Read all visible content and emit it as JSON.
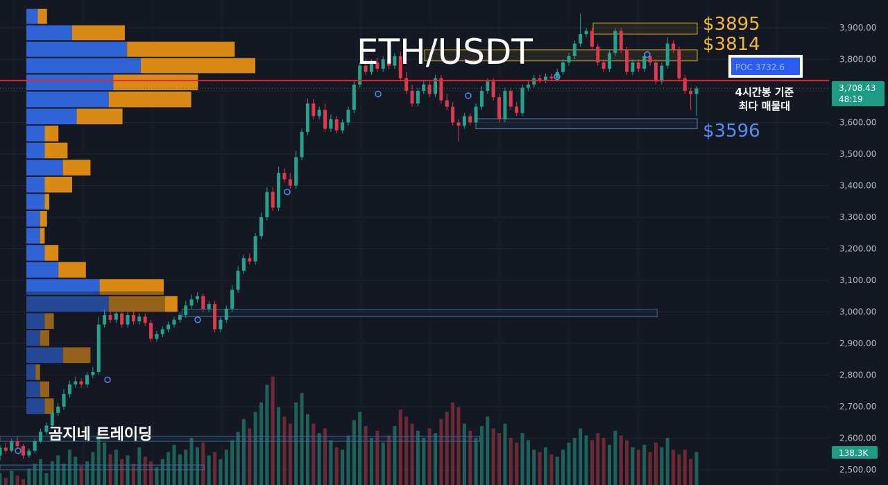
{
  "chart_data": {
    "type": "candlestick",
    "title": "ETH/USDT",
    "watermark": "곰지네 트레이딩",
    "ylim": [
      2460,
      3960
    ],
    "y_ticks": [
      "3,900.00",
      "3,800.00",
      "3,700.00",
      "3,600.00",
      "3,500.00",
      "3,400.00",
      "3,300.00",
      "3,200.00",
      "3,100.00",
      "3,000.00",
      "2,900.00",
      "2,800.00",
      "2,700.00",
      "2,600.00",
      "2,500.00"
    ],
    "y_tick_values": [
      3900,
      3800,
      3700,
      3600,
      3500,
      3400,
      3300,
      3200,
      3100,
      3000,
      2900,
      2800,
      2700,
      2600,
      2500
    ],
    "current_price": {
      "value": 3708.43,
      "label": "3,708.43",
      "countdown": "48:19"
    },
    "volume_badge": "138.3K",
    "poc": {
      "value": 3732.6,
      "label": "POC  3732.6",
      "note_line1": "4시간봉 기준",
      "note_line2": "최다 매물대"
    },
    "levels": [
      {
        "value": 3895,
        "label": "$3895",
        "zone": [
          3880,
          3915
        ]
      },
      {
        "value": 3814,
        "label": "$3814",
        "zone": [
          3795,
          3830
        ]
      },
      {
        "value": 3596,
        "label": "$3596",
        "zone": [
          3580,
          3612
        ]
      }
    ],
    "other_zones": [
      {
        "lo": 2985,
        "hi": 3008,
        "start": 0.205,
        "end": 0.74
      },
      {
        "lo": 2590,
        "hi": 2606,
        "start": 0.0,
        "end": 0.54
      },
      {
        "lo": 2500,
        "hi": 2515,
        "start": 0.0,
        "end": 0.23
      }
    ],
    "volume_profile": [
      {
        "lo": 3910,
        "hi": 3962,
        "buy": 0.05,
        "sell": 0.04
      },
      {
        "lo": 3858,
        "hi": 3910,
        "buy": 0.2,
        "sell": 0.23
      },
      {
        "lo": 3806,
        "hi": 3858,
        "buy": 0.44,
        "sell": 0.47
      },
      {
        "lo": 3754,
        "hi": 3806,
        "buy": 0.5,
        "sell": 0.5
      },
      {
        "lo": 3700,
        "hi": 3754,
        "buy": 0.38,
        "sell": 0.37
      },
      {
        "lo": 3646,
        "hi": 3700,
        "buy": 0.36,
        "sell": 0.36
      },
      {
        "lo": 3592,
        "hi": 3646,
        "buy": 0.22,
        "sell": 0.2
      },
      {
        "lo": 3538,
        "hi": 3592,
        "buy": 0.08,
        "sell": 0.06
      },
      {
        "lo": 3484,
        "hi": 3538,
        "buy": 0.08,
        "sell": 0.1
      },
      {
        "lo": 3430,
        "hi": 3484,
        "buy": 0.16,
        "sell": 0.12
      },
      {
        "lo": 3376,
        "hi": 3430,
        "buy": 0.08,
        "sell": 0.12
      },
      {
        "lo": 3322,
        "hi": 3376,
        "buy": 0.08,
        "sell": 0.02
      },
      {
        "lo": 3268,
        "hi": 3322,
        "buy": 0.06,
        "sell": 0.03
      },
      {
        "lo": 3214,
        "hi": 3268,
        "buy": 0.06,
        "sell": 0.02
      },
      {
        "lo": 3160,
        "hi": 3214,
        "buy": 0.08,
        "sell": 0.06
      },
      {
        "lo": 3106,
        "hi": 3160,
        "buy": 0.14,
        "sell": 0.12
      },
      {
        "lo": 3052,
        "hi": 3106,
        "buy": 0.32,
        "sell": 0.28
      },
      {
        "lo": 2998,
        "hi": 3052,
        "buy": 0.36,
        "sell": 0.3
      },
      {
        "lo": 2944,
        "hi": 2998,
        "buy": 0.08,
        "sell": 0.04
      },
      {
        "lo": 2890,
        "hi": 2944,
        "buy": 0.06,
        "sell": 0.04
      },
      {
        "lo": 2836,
        "hi": 2890,
        "buy": 0.16,
        "sell": 0.12
      },
      {
        "lo": 2782,
        "hi": 2836,
        "buy": 0.04,
        "sell": 0.02
      },
      {
        "lo": 2728,
        "hi": 2782,
        "buy": 0.06,
        "sell": 0.04
      },
      {
        "lo": 2674,
        "hi": 2728,
        "buy": 0.08,
        "sell": 0.04
      }
    ],
    "candles": [
      [
        2545,
        2570,
        2530,
        2578
      ],
      [
        2570,
        2560,
        2552,
        2585
      ],
      [
        2560,
        2590,
        2555,
        2598
      ],
      [
        2590,
        2575,
        2568,
        2605
      ],
      [
        2575,
        2545,
        2535,
        2582
      ],
      [
        2545,
        2560,
        2538,
        2568
      ],
      [
        2560,
        2590,
        2552,
        2598
      ],
      [
        2590,
        2620,
        2585,
        2630
      ],
      [
        2620,
        2640,
        2610,
        2650
      ],
      [
        2640,
        2680,
        2632,
        2690
      ],
      [
        2680,
        2700,
        2670,
        2712
      ],
      [
        2700,
        2740,
        2690,
        2755
      ],
      [
        2740,
        2770,
        2728,
        2782
      ],
      [
        2770,
        2780,
        2760,
        2795
      ],
      [
        2780,
        2770,
        2760,
        2790
      ],
      [
        2770,
        2800,
        2760,
        2810
      ],
      [
        2800,
        2810,
        2790,
        2825
      ],
      [
        2810,
        2960,
        2800,
        2985
      ],
      [
        2960,
        2990,
        2950,
        3010
      ],
      [
        2990,
        2975,
        2965,
        3010
      ],
      [
        2975,
        2995,
        2965,
        3005
      ],
      [
        2995,
        2960,
        2950,
        3005
      ],
      [
        2960,
        2990,
        2950,
        3000
      ],
      [
        2990,
        2970,
        2960,
        3000
      ],
      [
        2970,
        2985,
        2960,
        2995
      ],
      [
        2985,
        2965,
        2955,
        2995
      ],
      [
        2965,
        2915,
        2905,
        2975
      ],
      [
        2915,
        2930,
        2905,
        2940
      ],
      [
        2930,
        2945,
        2920,
        2955
      ],
      [
        2945,
        2960,
        2935,
        2970
      ],
      [
        2960,
        2975,
        2950,
        2985
      ],
      [
        2975,
        2990,
        2965,
        3000
      ],
      [
        2990,
        3020,
        2980,
        3035
      ],
      [
        3020,
        3040,
        3010,
        3055
      ],
      [
        3040,
        3050,
        3030,
        3062
      ],
      [
        3050,
        3010,
        3000,
        3058
      ],
      [
        3010,
        3025,
        3000,
        3035
      ],
      [
        3025,
        2945,
        2935,
        3035
      ],
      [
        2945,
        2975,
        2935,
        2985
      ],
      [
        2975,
        3010,
        2965,
        3020
      ],
      [
        3010,
        3070,
        3000,
        3085
      ],
      [
        3070,
        3130,
        3060,
        3145
      ],
      [
        3130,
        3170,
        3120,
        3180
      ],
      [
        3170,
        3160,
        3150,
        3185
      ],
      [
        3160,
        3240,
        3150,
        3250
      ],
      [
        3240,
        3300,
        3230,
        3315
      ],
      [
        3300,
        3380,
        3290,
        3395
      ],
      [
        3380,
        3330,
        3320,
        3395
      ],
      [
        3330,
        3440,
        3320,
        3460
      ],
      [
        3440,
        3420,
        3410,
        3455
      ],
      [
        3420,
        3400,
        3390,
        3440
      ],
      [
        3400,
        3490,
        3390,
        3510
      ],
      [
        3490,
        3570,
        3480,
        3580
      ],
      [
        3570,
        3660,
        3560,
        3675
      ],
      [
        3660,
        3620,
        3610,
        3675
      ],
      [
        3620,
        3640,
        3610,
        3650
      ],
      [
        3640,
        3580,
        3570,
        3660
      ],
      [
        3580,
        3610,
        3570,
        3625
      ],
      [
        3610,
        3575,
        3565,
        3620
      ],
      [
        3575,
        3600,
        3565,
        3610
      ],
      [
        3600,
        3640,
        3590,
        3650
      ],
      [
        3640,
        3720,
        3630,
        3735
      ],
      [
        3720,
        3780,
        3710,
        3790
      ],
      [
        3780,
        3760,
        3750,
        3800
      ],
      [
        3760,
        3790,
        3750,
        3800
      ],
      [
        3790,
        3770,
        3760,
        3805
      ],
      [
        3770,
        3800,
        3760,
        3810
      ],
      [
        3800,
        3780,
        3770,
        3810
      ],
      [
        3780,
        3810,
        3770,
        3820
      ],
      [
        3810,
        3740,
        3730,
        3825
      ],
      [
        3740,
        3700,
        3690,
        3760
      ],
      [
        3700,
        3660,
        3650,
        3720
      ],
      [
        3660,
        3700,
        3650,
        3710
      ],
      [
        3700,
        3720,
        3690,
        3735
      ],
      [
        3720,
        3690,
        3680,
        3730
      ],
      [
        3690,
        3740,
        3680,
        3750
      ],
      [
        3740,
        3670,
        3660,
        3750
      ],
      [
        3670,
        3650,
        3640,
        3690
      ],
      [
        3650,
        3600,
        3590,
        3665
      ],
      [
        3600,
        3590,
        3540,
        3610
      ],
      [
        3590,
        3620,
        3580,
        3630
      ],
      [
        3620,
        3600,
        3590,
        3630
      ],
      [
        3600,
        3650,
        3590,
        3660
      ],
      [
        3650,
        3700,
        3640,
        3715
      ],
      [
        3700,
        3730,
        3690,
        3740
      ],
      [
        3730,
        3680,
        3670,
        3740
      ],
      [
        3680,
        3610,
        3600,
        3690
      ],
      [
        3610,
        3700,
        3600,
        3710
      ],
      [
        3700,
        3650,
        3640,
        3710
      ],
      [
        3650,
        3630,
        3620,
        3665
      ],
      [
        3630,
        3710,
        3620,
        3720
      ],
      [
        3710,
        3720,
        3700,
        3735
      ],
      [
        3720,
        3740,
        3710,
        3750
      ],
      [
        3740,
        3735,
        3725,
        3752
      ],
      [
        3735,
        3745,
        3725,
        3755
      ],
      [
        3745,
        3740,
        3730,
        3755
      ],
      [
        3740,
        3760,
        3730,
        3770
      ],
      [
        3760,
        3790,
        3750,
        3800
      ],
      [
        3790,
        3810,
        3780,
        3820
      ],
      [
        3810,
        3850,
        3800,
        3860
      ],
      [
        3850,
        3880,
        3840,
        3945
      ],
      [
        3880,
        3890,
        3870,
        3900
      ],
      [
        3890,
        3840,
        3830,
        3900
      ],
      [
        3840,
        3790,
        3780,
        3850
      ],
      [
        3790,
        3770,
        3760,
        3800
      ],
      [
        3770,
        3820,
        3760,
        3830
      ],
      [
        3820,
        3890,
        3810,
        3900
      ],
      [
        3890,
        3830,
        3820,
        3900
      ],
      [
        3830,
        3760,
        3750,
        3840
      ],
      [
        3760,
        3790,
        3750,
        3800
      ],
      [
        3790,
        3770,
        3760,
        3800
      ],
      [
        3770,
        3810,
        3760,
        3820
      ],
      [
        3810,
        3790,
        3780,
        3820
      ],
      [
        3790,
        3730,
        3720,
        3800
      ],
      [
        3730,
        3780,
        3720,
        3790
      ],
      [
        3780,
        3850,
        3770,
        3870
      ],
      [
        3850,
        3830,
        3820,
        3860
      ],
      [
        3830,
        3740,
        3730,
        3840
      ],
      [
        3740,
        3700,
        3690,
        3750
      ],
      [
        3700,
        3690,
        3640,
        3710
      ],
      [
        3690,
        3708,
        3620,
        3715
      ]
    ],
    "volumes": [
      0.1,
      0.06,
      0.12,
      0.08,
      0.05,
      0.14,
      0.18,
      0.22,
      0.1,
      0.2,
      0.25,
      0.18,
      0.3,
      0.24,
      0.16,
      0.2,
      0.28,
      0.45,
      0.36,
      0.26,
      0.3,
      0.22,
      0.25,
      0.18,
      0.32,
      0.24,
      0.2,
      0.15,
      0.22,
      0.28,
      0.34,
      0.26,
      0.3,
      0.4,
      0.32,
      0.36,
      0.25,
      0.28,
      0.22,
      0.3,
      0.38,
      0.45,
      0.56,
      0.48,
      0.62,
      0.7,
      0.85,
      0.92,
      0.66,
      0.58,
      0.52,
      0.7,
      0.78,
      0.6,
      0.52,
      0.44,
      0.48,
      0.38,
      0.32,
      0.3,
      0.42,
      0.55,
      0.62,
      0.5,
      0.4,
      0.46,
      0.36,
      0.42,
      0.5,
      0.64,
      0.58,
      0.52,
      0.46,
      0.4,
      0.48,
      0.44,
      0.56,
      0.62,
      0.7,
      0.66,
      0.52,
      0.46,
      0.4,
      0.5,
      0.58,
      0.48,
      0.44,
      0.52,
      0.4,
      0.36,
      0.44,
      0.38,
      0.3,
      0.28,
      0.32,
      0.26,
      0.24,
      0.3,
      0.36,
      0.4,
      0.48,
      0.42,
      0.38,
      0.44,
      0.4,
      0.34,
      0.46,
      0.42,
      0.38,
      0.32,
      0.3,
      0.34,
      0.28,
      0.36,
      0.32,
      0.4,
      0.3,
      0.26,
      0.3,
      0.22,
      0.28
    ]
  }
}
